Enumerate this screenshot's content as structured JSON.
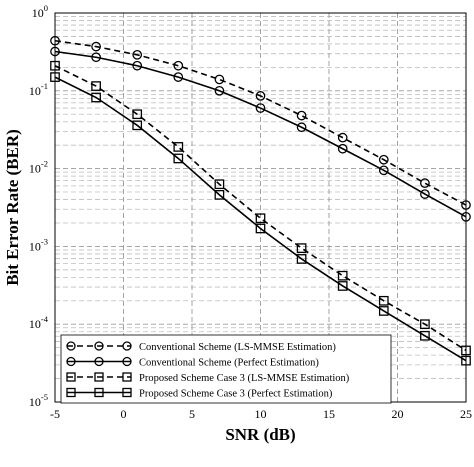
{
  "chart_data": {
    "type": "line",
    "title": "",
    "xlabel": "SNR (dB)",
    "ylabel": "Bit Error Rate (BER)",
    "xlim": [
      -5,
      25
    ],
    "ylim": [
      1e-05,
      1
    ],
    "yscale": "log",
    "xticks": [
      -5,
      0,
      5,
      10,
      15,
      20,
      25
    ],
    "grid": true,
    "legend_position": "bottom-left",
    "x": [
      -5,
      -2,
      1,
      4,
      7,
      10,
      13,
      16,
      19,
      22,
      25
    ],
    "series": [
      {
        "name": "Conventional Scheme (LS-MMSE Estimation)",
        "marker": "circle",
        "line": "dashed",
        "color": "#000000",
        "values": [
          0.44,
          0.37,
          0.29,
          0.21,
          0.14,
          0.086,
          0.048,
          0.025,
          0.013,
          0.0065,
          0.0034
        ]
      },
      {
        "name": "Conventional Scheme (Perfect Estimation)",
        "marker": "circle",
        "line": "solid",
        "color": "#000000",
        "values": [
          0.32,
          0.27,
          0.21,
          0.15,
          0.1,
          0.06,
          0.034,
          0.018,
          0.0095,
          0.0047,
          0.0024
        ]
      },
      {
        "name": "Proposed Scheme Case 3 (LS-MMSE Estimation)",
        "marker": "square",
        "line": "dashed",
        "color": "#000000",
        "values": [
          0.21,
          0.115,
          0.05,
          0.019,
          0.0063,
          0.0023,
          0.00095,
          0.00042,
          0.0002,
          0.0001,
          4.6e-05
        ]
      },
      {
        "name": "Proposed Scheme Case 3 (Perfect Estimation)",
        "marker": "square",
        "line": "solid",
        "color": "#000000",
        "values": [
          0.15,
          0.082,
          0.036,
          0.0135,
          0.0046,
          0.0017,
          0.00069,
          0.00031,
          0.000148,
          7.1e-05,
          3.4e-05
        ]
      }
    ]
  }
}
